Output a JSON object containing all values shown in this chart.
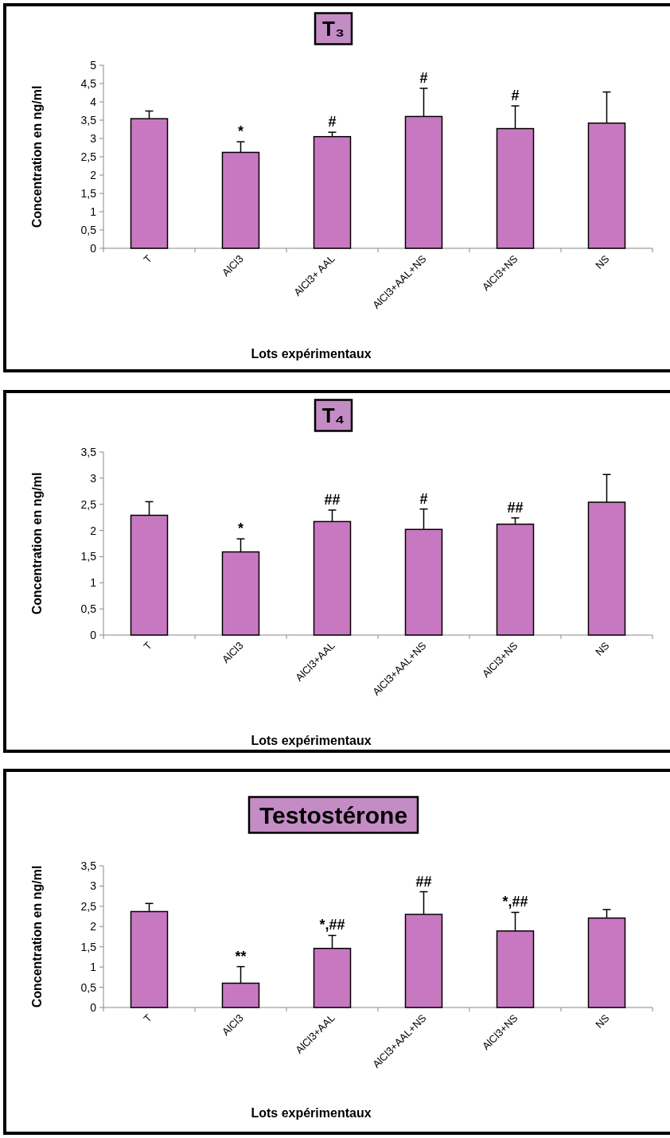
{
  "chart_data": [
    {
      "type": "bar",
      "title": "T₃",
      "xlabel": "Lots expérimentaux",
      "ylabel": "Concentration en ng/ml",
      "categories": [
        "T",
        "AlCl3",
        "AlCl3+ AAL",
        "AlCl3+AAL+NS",
        "AlCl3+NS",
        "NS"
      ],
      "color": "#c878c0",
      "values": [
        3.54,
        2.62,
        3.05,
        3.6,
        3.27,
        3.42
      ],
      "errors": [
        [
          3.54,
          3.75
        ],
        [
          2.62,
          2.91
        ],
        [
          3.05,
          3.17
        ],
        [
          3.6,
          4.37
        ],
        [
          3.27,
          3.89
        ],
        [
          3.42,
          4.27
        ]
      ],
      "ylim": [
        0,
        5
      ],
      "yticks": [
        0,
        {
          "value": 0.5,
          "label": "0,5"
        },
        1,
        {
          "value": 1.5,
          "label": "1,5"
        },
        2,
        {
          "value": 2.5,
          "label": "2,5"
        },
        3,
        {
          "value": 3.5,
          "label": "3,5"
        },
        4,
        {
          "value": 4.5,
          "label": "4,5"
        },
        5
      ],
      "annotations": [
        {
          "text": "*",
          "x": "AlCl3",
          "y": 2.91
        },
        {
          "text": "#",
          "x": "AlCl3+ AAL",
          "y": 3.17
        },
        {
          "text": "#",
          "x": "AlCl3+AAL+NS",
          "y": 4.37
        },
        {
          "text": "#",
          "x": "AlCl3+NS",
          "y": 3.89
        }
      ]
    },
    {
      "type": "bar",
      "title": "T₄",
      "xlabel": "Lots expérimentaux",
      "ylabel": "Concentration en ng/ml",
      "categories": [
        "T",
        "AlCl3",
        "AlCl3+AAL",
        "AlCl3+AAL+NS",
        "AlCl3+NS",
        "NS"
      ],
      "color": "#c878c0",
      "values": [
        2.29,
        1.59,
        2.17,
        2.02,
        2.12,
        2.54
      ],
      "errors": [
        [
          2.29,
          2.55
        ],
        [
          1.59,
          1.84
        ],
        [
          2.17,
          2.39
        ],
        [
          2.02,
          2.41
        ],
        [
          2.12,
          2.24
        ],
        [
          2.54,
          3.07
        ]
      ],
      "ylim": [
        0,
        3.5
      ],
      "yticks": [
        0,
        {
          "value": 0.5,
          "label": "0,5"
        },
        1,
        {
          "value": 1.5,
          "label": "1,5"
        },
        2,
        {
          "value": 2.5,
          "label": "2,5"
        },
        3,
        {
          "value": 3.5,
          "label": "3,5"
        }
      ],
      "annotations": [
        {
          "text": "*",
          "x": "AlCl3",
          "y": 1.84
        },
        {
          "text": "##",
          "x": "AlCl3+AAL",
          "y": 2.39
        },
        {
          "text": "#",
          "x": "AlCl3+AAL+NS",
          "y": 2.41
        },
        {
          "text": "##",
          "x": "AlCl3+NS",
          "y": 2.24
        }
      ]
    },
    {
      "type": "bar",
      "title": "Testostérone",
      "xlabel": "Lots expérimentaux",
      "ylabel": "Concentration en ng/ml",
      "categories": [
        "T",
        "AlCl3",
        "AlCl3+AAL",
        "AlCl3+AAL+NS",
        "AlCl3+NS",
        "NS"
      ],
      "color": "#c878c0",
      "values": [
        2.37,
        0.6,
        1.46,
        2.3,
        1.89,
        2.21
      ],
      "errors": [
        [
          2.37,
          2.57
        ],
        [
          0.6,
          1.01
        ],
        [
          1.46,
          1.78
        ],
        [
          2.3,
          2.86
        ],
        [
          1.89,
          2.35
        ],
        [
          2.21,
          2.42
        ]
      ],
      "ylim": [
        0,
        3.5
      ],
      "yticks": [
        0,
        {
          "value": 0.5,
          "label": "0,5"
        },
        1,
        {
          "value": 1.5,
          "label": "1,5"
        },
        2,
        {
          "value": 2.5,
          "label": "2,5"
        },
        3,
        {
          "value": 3.5,
          "label": "3,5"
        }
      ],
      "annotations": [
        {
          "text": "**",
          "x": "AlCl3",
          "y": 1.01
        },
        {
          "text": "*,##",
          "x": "AlCl3+AAL",
          "y": 1.78
        },
        {
          "text": "##",
          "x": "AlCl3+AAL+NS",
          "y": 2.86
        },
        {
          "text": "*,##",
          "x": "AlCl3+NS",
          "y": 2.35
        }
      ]
    }
  ]
}
